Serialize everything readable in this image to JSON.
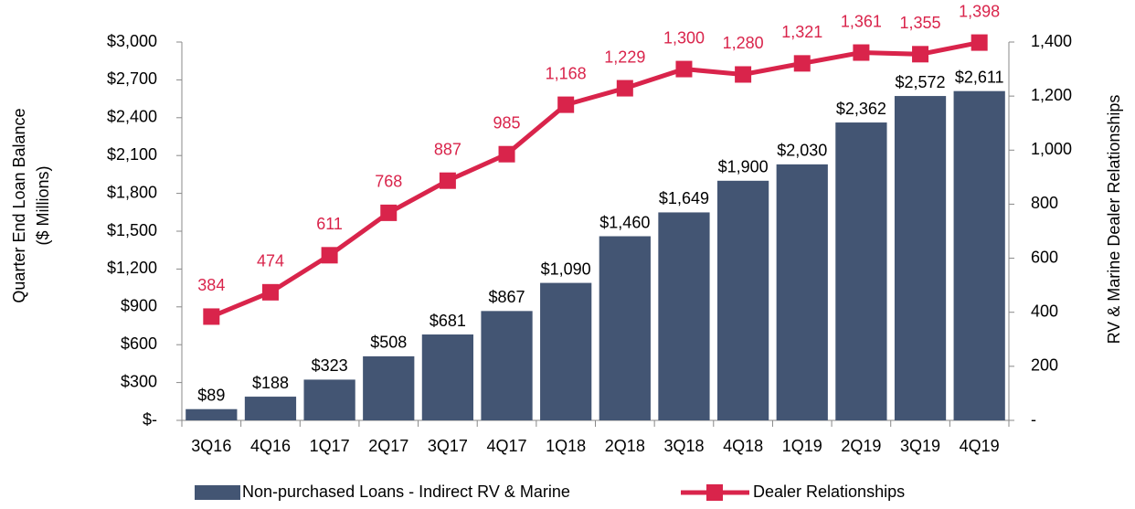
{
  "chart_data": {
    "type": "bar_line",
    "ylabel": [
      "Quarter End Loan Balance",
      "($ Millions)"
    ],
    "y2label": "RV & Marine Dealer Relationships",
    "categories": [
      "3Q16",
      "4Q16",
      "1Q17",
      "2Q17",
      "3Q17",
      "4Q17",
      "1Q18",
      "2Q18",
      "3Q18",
      "4Q18",
      "1Q19",
      "2Q19",
      "3Q19",
      "4Q19"
    ],
    "series": [
      {
        "name": "Non-purchased Loans - Indirect RV & Marine",
        "type": "bar",
        "color": "#435573",
        "values": [
          89,
          188,
          323,
          508,
          681,
          867,
          1090,
          1460,
          1649,
          1900,
          2030,
          2362,
          2572,
          2611
        ],
        "value_labels": [
          "$89",
          "$188",
          "$323",
          "$508",
          "$681",
          "$867",
          "$1,090",
          "$1,460",
          "$1,649",
          "$1,900",
          "$2,030",
          "$2,362",
          "$2,572",
          "$2,611"
        ]
      },
      {
        "name": "Dealer Relationships",
        "type": "line",
        "axis": "y2",
        "color": "#d9244b",
        "values": [
          384,
          474,
          611,
          768,
          887,
          985,
          1168,
          1229,
          1300,
          1280,
          1321,
          1361,
          1355,
          1398
        ],
        "value_labels": [
          "384",
          "474",
          "611",
          "768",
          "887",
          "985",
          "1,168",
          "1,229",
          "1,300",
          "1,280",
          "1,321",
          "1,361",
          "1,355",
          "1,398"
        ]
      }
    ],
    "ylim": [
      0,
      3000
    ],
    "yticks": [
      {
        "value": 0,
        "label": "$-"
      },
      {
        "value": 300,
        "label": "$300"
      },
      {
        "value": 600,
        "label": "$600"
      },
      {
        "value": 900,
        "label": "$900"
      },
      {
        "value": 1200,
        "label": "$1,200"
      },
      {
        "value": 1500,
        "label": "$1,500"
      },
      {
        "value": 1800,
        "label": "$1,800"
      },
      {
        "value": 2100,
        "label": "$2,100"
      },
      {
        "value": 2400,
        "label": "$2,400"
      },
      {
        "value": 2700,
        "label": "$2,700"
      },
      {
        "value": 3000,
        "label": "$3,000"
      }
    ],
    "y2lim": [
      0,
      1400
    ],
    "y2ticks": [
      {
        "value": 0,
        "label": "-"
      },
      200,
      400,
      600,
      800,
      {
        "value": 1000,
        "label": "1,000"
      },
      {
        "value": 1200,
        "label": "1,200"
      },
      {
        "value": 1400,
        "label": "1,400"
      }
    ],
    "legend": "bottom"
  }
}
